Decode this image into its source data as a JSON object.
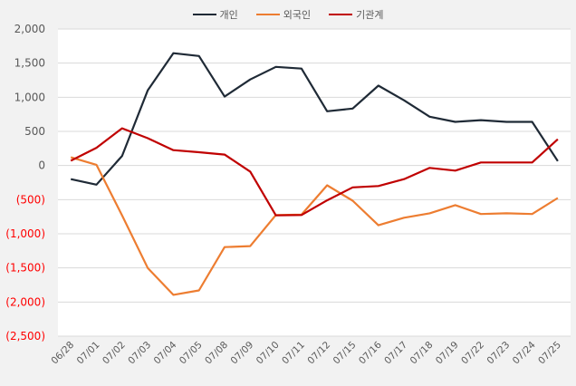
{
  "chart_data": {
    "type": "line",
    "title": "",
    "xlabel": "",
    "ylabel": "",
    "categories": [
      "06/28",
      "07/01",
      "07/02",
      "07/03",
      "07/04",
      "07/05",
      "07/08",
      "07/09",
      "07/10",
      "07/11",
      "07/12",
      "07/15",
      "07/16",
      "07/17",
      "07/18",
      "07/19",
      "07/22",
      "07/23",
      "07/24",
      "07/25"
    ],
    "series": [
      {
        "name": "개인",
        "color": "#1f2a36",
        "values": [
          -200,
          -280,
          140,
          1100,
          1645,
          1605,
          1010,
          1260,
          1445,
          1420,
          795,
          835,
          1170,
          955,
          715,
          640,
          665,
          640,
          640,
          65
        ]
      },
      {
        "name": "외국인",
        "color": "#ed7d31",
        "values": [
          120,
          10,
          -730,
          -1500,
          -1895,
          -1830,
          -1195,
          -1180,
          -725,
          -720,
          -290,
          -515,
          -875,
          -765,
          -700,
          -580,
          -710,
          -700,
          -710,
          -475
        ]
      },
      {
        "name": "기관계",
        "color": "#c00000",
        "values": [
          70,
          260,
          545,
          400,
          225,
          195,
          160,
          -90,
          -730,
          -725,
          -510,
          -320,
          -300,
          -200,
          -35,
          -75,
          45,
          45,
          45,
          385
        ]
      }
    ],
    "ylim": [
      -2500,
      2000
    ],
    "yticks": [
      2000,
      1500,
      1000,
      500,
      0,
      -500,
      -1000,
      -1500,
      -2000,
      -2500
    ],
    "ytick_labels": [
      "2,000",
      "1,500",
      "1,000",
      "500",
      "0",
      "(500)",
      "(1,000)",
      "(1,500)",
      "(2,000)",
      "(2,500)"
    ],
    "negative_tick_color": "#ff0000",
    "positive_tick_color": "#595959",
    "grid": true,
    "legend_position": "top"
  },
  "colors": {
    "background": "#f2f2f2",
    "plot_background": "#ffffff",
    "gridline": "#d9d9d9"
  }
}
